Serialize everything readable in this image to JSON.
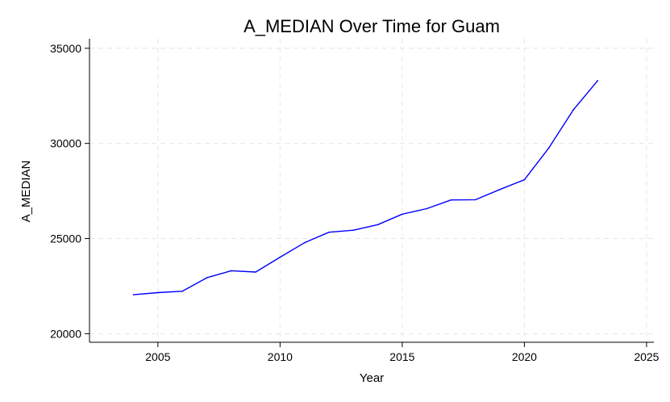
{
  "chart_data": {
    "type": "line",
    "title": "A_MEDIAN Over Time for Guam",
    "xlabel": "Year",
    "ylabel": "A_MEDIAN",
    "xlim": [
      2002.2,
      2025.3
    ],
    "ylim": [
      19550,
      35500
    ],
    "xticks": [
      2005,
      2010,
      2015,
      2020,
      2025
    ],
    "yticks": [
      20000,
      25000,
      30000,
      35000
    ],
    "grid": true,
    "series": [
      {
        "color": "#0000ff",
        "x": [
          2004,
          2005,
          2006,
          2007,
          2008,
          2009,
          2010,
          2011,
          2012,
          2013,
          2014,
          2015,
          2016,
          2017,
          2018,
          2019,
          2020,
          2021,
          2022,
          2023
        ],
        "y": [
          22050,
          22160,
          22230,
          22940,
          23310,
          23240,
          24020,
          24780,
          25330,
          25440,
          25730,
          26280,
          26570,
          27030,
          27040,
          27580,
          28090,
          29760,
          31760,
          33300
        ]
      }
    ]
  }
}
